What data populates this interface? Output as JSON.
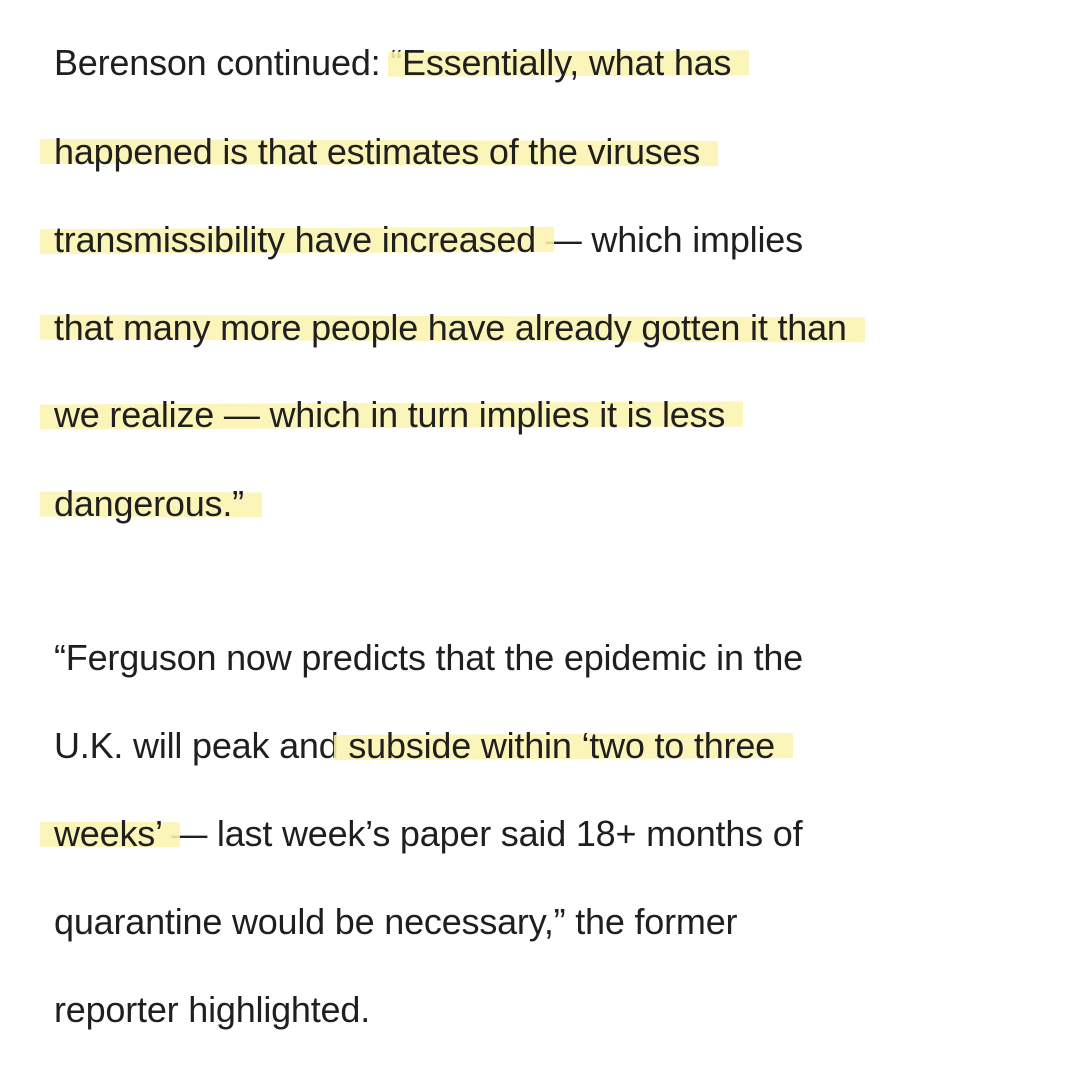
{
  "article": {
    "paragraph1": {
      "line1_plain": "Berenson continued: “",
      "line1_highlight": "Essentially, what has",
      "line2_highlight": "happened is that estimates of the viruses",
      "line3_highlight": "transmissibility have increased",
      "line3_plain": " — which implies",
      "line4_highlight": "that many more people have already gotten it than",
      "line5_highlight": "we realize — which in turn implies it is less",
      "line6_highlight": "dangerous.”"
    },
    "paragraph2": {
      "line1_plain": "“Ferguson now predicts that the epidemic in the",
      "line2_plain": "U.K. will peak and ",
      "line2_highlight": "subside within ‘two to three",
      "line3_highlight": "weeks’",
      "line3_plain": " — last week’s paper said 18+ months of",
      "line4_plain": "quarantine would be necessary,” the former",
      "line5_plain": "reporter highlighted."
    }
  },
  "colors": {
    "text": "#1f1f1f",
    "highlight": "#faf4b0",
    "background": "#ffffff"
  }
}
